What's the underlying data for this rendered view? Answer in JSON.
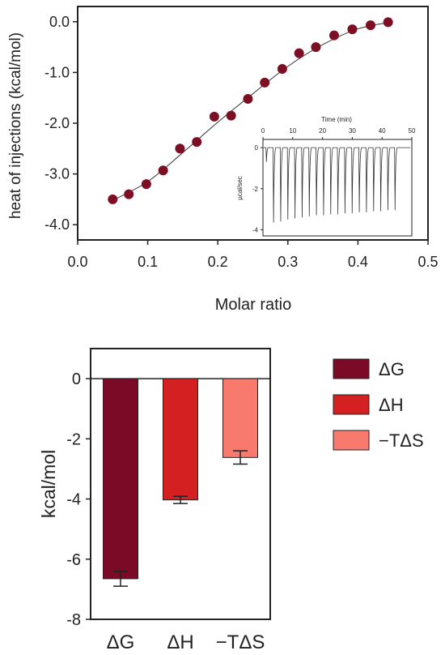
{
  "chart_data": [
    {
      "type": "scatter",
      "xlabel": "Molar ratio",
      "ylabel": "heat of injections (kcal/mol)",
      "xlim": [
        0,
        0.5
      ],
      "ylim": [
        -4.3,
        0.3
      ],
      "xticks": [
        0,
        0.1,
        0.2,
        0.3,
        0.4,
        0.5
      ],
      "xtick_labels": [
        "0.0",
        "0.1",
        "0.2",
        "0.3",
        "0.4",
        "0.5"
      ],
      "yticks": [
        0,
        -1,
        -2,
        -3,
        -4
      ],
      "ytick_labels": [
        "0.0",
        "-1.0",
        "-2.0",
        "-3.0",
        "-4.0"
      ],
      "marker_color": "#7d0f24",
      "points": [
        {
          "x": 0.05,
          "y": -3.5
        },
        {
          "x": 0.073,
          "y": -3.4
        },
        {
          "x": 0.098,
          "y": -3.2
        },
        {
          "x": 0.122,
          "y": -2.93
        },
        {
          "x": 0.146,
          "y": -2.5
        },
        {
          "x": 0.17,
          "y": -2.37
        },
        {
          "x": 0.195,
          "y": -1.87
        },
        {
          "x": 0.219,
          "y": -1.85
        },
        {
          "x": 0.243,
          "y": -1.52
        },
        {
          "x": 0.267,
          "y": -1.2
        },
        {
          "x": 0.292,
          "y": -0.93
        },
        {
          "x": 0.316,
          "y": -0.62
        },
        {
          "x": 0.34,
          "y": -0.5
        },
        {
          "x": 0.366,
          "y": -0.27
        },
        {
          "x": 0.392,
          "y": -0.15
        },
        {
          "x": 0.418,
          "y": -0.07
        },
        {
          "x": 0.443,
          "y": -0.01
        }
      ],
      "fit_curve": {
        "x": [
          0.05,
          0.1,
          0.15,
          0.2,
          0.25,
          0.3,
          0.35,
          0.4,
          0.45
        ],
        "y": [
          -3.52,
          -3.15,
          -2.58,
          -1.98,
          -1.42,
          -0.88,
          -0.45,
          -0.14,
          0.0
        ]
      },
      "inset": {
        "type": "line",
        "xlabel": "Time (min)",
        "ylabel": "µcal/sec",
        "xlim": [
          0,
          50
        ],
        "ylim": [
          -4.3,
          0.4
        ],
        "xticks": [
          0,
          10,
          20,
          30,
          40,
          50
        ],
        "xtick_labels": [
          "0",
          "10",
          "20",
          "30",
          "40",
          "50"
        ],
        "yticks": [
          0,
          -2,
          -4
        ],
        "ytick_labels": [
          "0",
          "-2",
          "-4"
        ],
        "baseline": 0,
        "peaks": [
          {
            "t": 1.0,
            "depth": -0.7
          },
          {
            "t": 3.4,
            "depth": -3.65
          },
          {
            "t": 5.8,
            "depth": -3.6
          },
          {
            "t": 8.2,
            "depth": -3.5
          },
          {
            "t": 10.6,
            "depth": -3.45
          },
          {
            "t": 13.0,
            "depth": -3.4
          },
          {
            "t": 15.4,
            "depth": -3.35
          },
          {
            "t": 17.8,
            "depth": -3.3
          },
          {
            "t": 20.2,
            "depth": -3.3
          },
          {
            "t": 22.6,
            "depth": -3.25
          },
          {
            "t": 25.0,
            "depth": -3.25
          },
          {
            "t": 27.4,
            "depth": -3.2
          },
          {
            "t": 29.8,
            "depth": -3.2
          },
          {
            "t": 32.2,
            "depth": -3.15
          },
          {
            "t": 34.6,
            "depth": -3.15
          },
          {
            "t": 37.0,
            "depth": -3.1
          },
          {
            "t": 39.4,
            "depth": -3.1
          },
          {
            "t": 41.8,
            "depth": -3.05
          },
          {
            "t": 44.2,
            "depth": -3.05
          }
        ]
      }
    },
    {
      "type": "bar",
      "ylabel": "kcal/mol",
      "ylim": [
        -8,
        1
      ],
      "yticks": [
        0,
        -2,
        -4,
        -6,
        -8
      ],
      "ytick_labels": [
        "0",
        "-2",
        "-4",
        "-6",
        "-8"
      ],
      "categories": [
        "ΔG",
        "ΔH",
        "−TΔS"
      ],
      "values": [
        -6.65,
        -4.03,
        -2.62
      ],
      "errors": [
        0.25,
        0.12,
        0.22
      ],
      "colors": [
        "#7a0a26",
        "#d42020",
        "#f87a6e"
      ],
      "legend": {
        "position": "right",
        "entries": [
          {
            "label": "ΔG",
            "color": "#7a0a26"
          },
          {
            "label": "ΔH",
            "color": "#d42020"
          },
          {
            "label": "−TΔS",
            "color": "#f87a6e"
          }
        ]
      }
    }
  ]
}
